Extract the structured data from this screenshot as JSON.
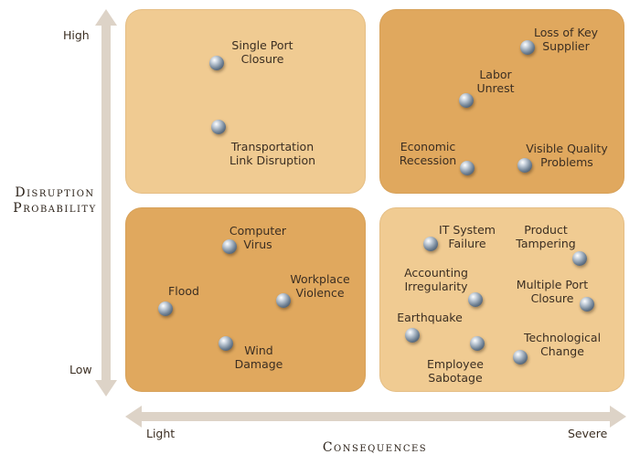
{
  "y_axis": {
    "title_line1": "Disruption",
    "title_line2": "Probability",
    "high": "High",
    "low": "Low"
  },
  "x_axis": {
    "title": "Consequences",
    "light": "Light",
    "severe": "Severe"
  },
  "events": [
    {
      "id": "single-port-closure",
      "line1": "Single Port",
      "line2": "Closure"
    },
    {
      "id": "transportation-link-disruption",
      "line1": "Transportation",
      "line2": "Link Disruption"
    },
    {
      "id": "loss-of-key-supplier",
      "line1": "Loss of Key",
      "line2": "Supplier"
    },
    {
      "id": "labor-unrest",
      "line1": "Labor",
      "line2": "Unrest"
    },
    {
      "id": "economic-recession",
      "line1": "Economic",
      "line2": "Recession"
    },
    {
      "id": "visible-quality-problems",
      "line1": "Visible Quality",
      "line2": "Problems"
    },
    {
      "id": "computer-virus",
      "line1": "Computer",
      "line2": "Virus"
    },
    {
      "id": "flood",
      "line1": "Flood",
      "line2": ""
    },
    {
      "id": "workplace-violence",
      "line1": "Workplace",
      "line2": "Violence"
    },
    {
      "id": "wind-damage",
      "line1": "Wind",
      "line2": "Damage"
    },
    {
      "id": "it-system-failure",
      "line1": "IT System",
      "line2": "Failure"
    },
    {
      "id": "product-tampering",
      "line1": "Product",
      "line2": "Tampering"
    },
    {
      "id": "accounting-irregularity",
      "line1": "Accounting",
      "line2": "Irregularity"
    },
    {
      "id": "multiple-port-closure",
      "line1": "Multiple Port",
      "line2": "Closure"
    },
    {
      "id": "earthquake",
      "line1": "Earthquake",
      "line2": ""
    },
    {
      "id": "technological-change",
      "line1": "Technological",
      "line2": "Change"
    },
    {
      "id": "employee-sabotage",
      "line1": "Employee",
      "line2": "Sabotage"
    }
  ]
}
